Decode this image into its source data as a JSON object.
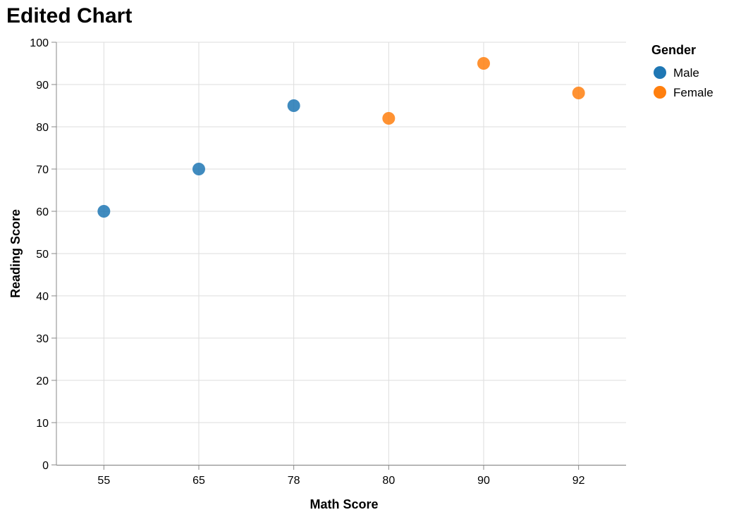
{
  "chart_data": {
    "type": "scatter",
    "title": "Edited Chart",
    "xlabel": "Math Score",
    "ylabel": "Reading Score",
    "x_scale": "ordinal",
    "x_categories": [
      "55",
      "65",
      "78",
      "80",
      "90",
      "92"
    ],
    "ylim": [
      0,
      100
    ],
    "y_ticks": [
      0,
      10,
      20,
      30,
      40,
      50,
      60,
      70,
      80,
      90,
      100
    ],
    "grid": true,
    "legend": {
      "title": "Gender",
      "placement": "top-right"
    },
    "series": [
      {
        "name": "Male",
        "color": "#1f77b4",
        "points": [
          {
            "x": "55",
            "y": 60
          },
          {
            "x": "65",
            "y": 70
          },
          {
            "x": "78",
            "y": 85
          }
        ]
      },
      {
        "name": "Female",
        "color": "#ff7f0e",
        "points": [
          {
            "x": "80",
            "y": 82
          },
          {
            "x": "90",
            "y": 95
          },
          {
            "x": "92",
            "y": 88
          }
        ]
      }
    ]
  }
}
